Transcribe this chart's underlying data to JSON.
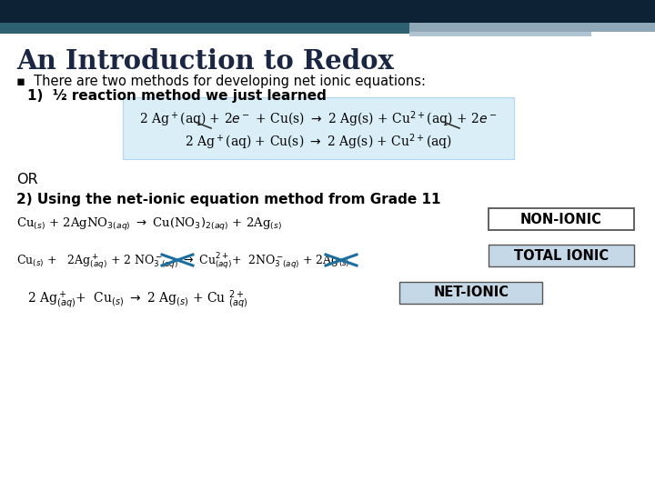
{
  "title": "An Introduction to Redox",
  "title_color": "#1a2744",
  "background_color": "#ffffff",
  "header_dark_color": "#0d2235",
  "header_teal_color": "#2e6070",
  "header_gray_color": "#8fa8b8",
  "header_lightgray_color": "#b0c4d0",
  "bullet_text": "There are two methods for developing net ionic equations:",
  "item1_text": "1)  ½ reaction method we just learned",
  "blue_box_color": "#daeef8",
  "blue_box_border": "#aed6f1",
  "or_text": "OR",
  "section2_text": "2) Using the net-ionic equation method from Grade 11",
  "non_ionic_label": "NON-IONIC",
  "total_ionic_label": "TOTAL IONIC",
  "net_ionic_label": "NET-IONIC",
  "non_ionic_box_color": "#ffffff",
  "total_ionic_box_color": "#c5d8e8",
  "net_ionic_box_color": "#c5d8e8",
  "cross_color": "#1a6fa0",
  "text_color": "#000000",
  "label_text_color": "#000000"
}
